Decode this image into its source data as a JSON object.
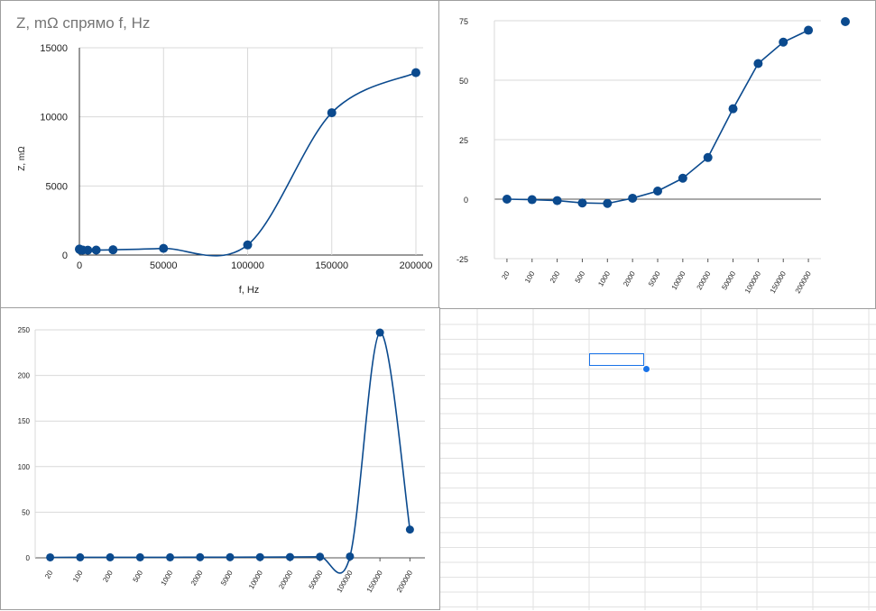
{
  "colors": {
    "series": "#0b4a8e",
    "grid": "#d9d9d9",
    "axis": "#333333",
    "sheet_grid": "#e2e2e2"
  },
  "chart_data": [
    {
      "type": "scatter",
      "title": "Z, mΩ спрямо f, Hz",
      "xlabel": "f, Hz",
      "ylabel": "Z, mΩ",
      "xlim": [
        0,
        200000
      ],
      "ylim": [
        0,
        15000
      ],
      "x_ticks": [
        "0",
        "50000",
        "100000",
        "150000",
        "200000"
      ],
      "y_ticks": [
        "0",
        "5000",
        "10000",
        "15000"
      ],
      "grid": true,
      "smooth_line": true,
      "points": [
        [
          20,
          430
        ],
        [
          100,
          420
        ],
        [
          200,
          400
        ],
        [
          500,
          380
        ],
        [
          1000,
          370
        ],
        [
          2000,
          360
        ],
        [
          5000,
          350
        ],
        [
          10000,
          360
        ],
        [
          20000,
          380
        ],
        [
          50000,
          480
        ],
        [
          100000,
          730
        ],
        [
          150000,
          10300
        ],
        [
          200000,
          13200
        ]
      ]
    },
    {
      "type": "line",
      "categories": [
        "20",
        "100",
        "200",
        "500",
        "1000",
        "2000",
        "5000",
        "10000",
        "20000",
        "50000",
        "100000",
        "150000",
        "200000"
      ],
      "values": [
        0,
        -0.2,
        -0.6,
        -1.6,
        -1.8,
        0.4,
        3.4,
        8.8,
        17.5,
        38,
        57,
        66,
        71
      ],
      "ylim": [
        -25,
        75
      ],
      "y_ticks": [
        "-25",
        "0",
        "25",
        "50",
        "75"
      ],
      "grid": true,
      "legend_marker": "top-right"
    },
    {
      "type": "line",
      "categories": [
        "20",
        "100",
        "200",
        "500",
        "1000",
        "2000",
        "5000",
        "10000",
        "20000",
        "50000",
        "100000",
        "150000",
        "200000"
      ],
      "values": [
        0.5,
        0.6,
        0.6,
        0.6,
        0.6,
        0.7,
        0.7,
        0.8,
        0.9,
        1.2,
        1.5,
        247,
        31
      ],
      "ylim": [
        0,
        250
      ],
      "y_ticks": [
        "0",
        "50",
        "100",
        "150",
        "200",
        "250"
      ],
      "grid": true,
      "smooth_line": true
    }
  ]
}
